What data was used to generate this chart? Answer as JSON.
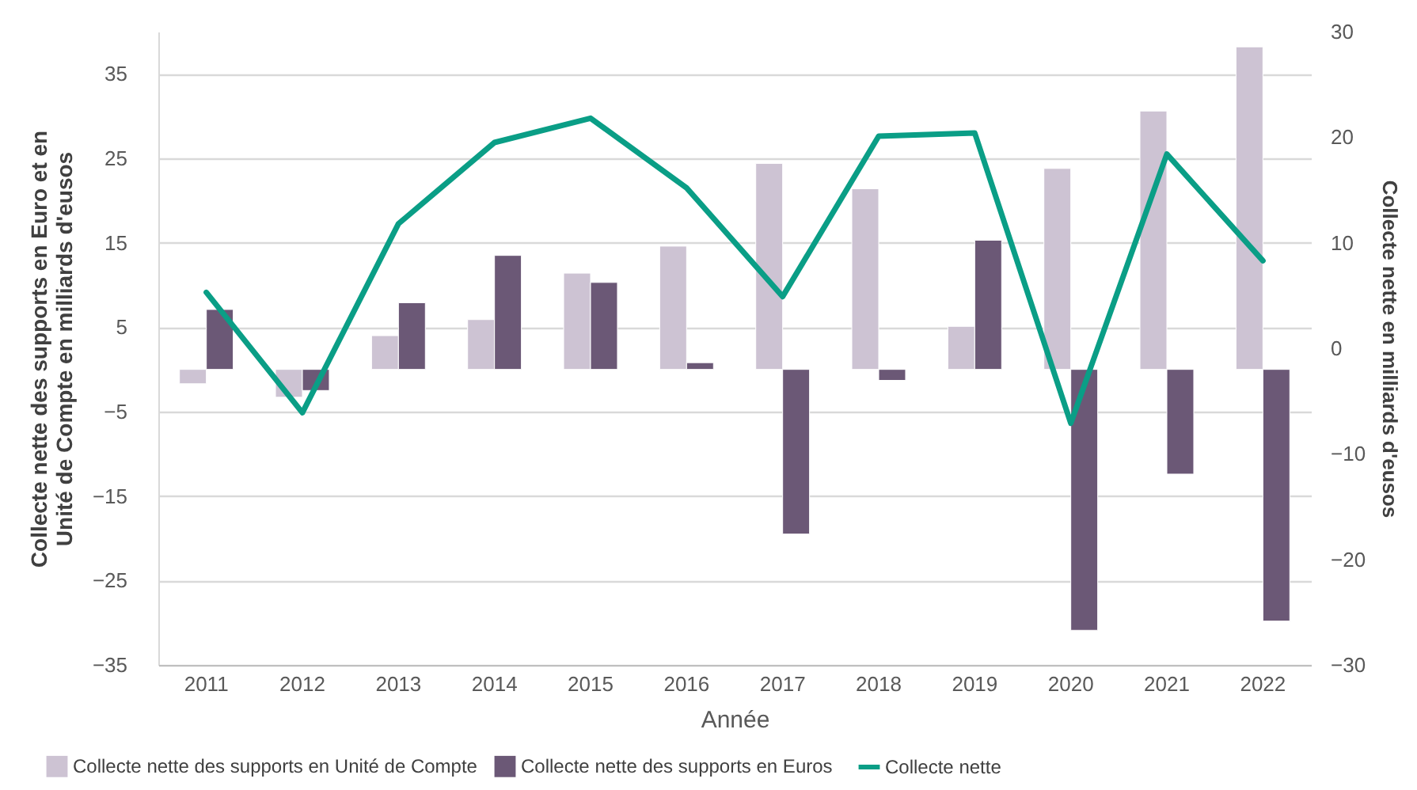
{
  "chart_data": {
    "type": "bar",
    "xlabel": "Année",
    "ylabel": "Collecte nette des supports en Euro et en Unité de Compte en milliards d'eusos",
    "y2label": "Collecte nette en milliards d'eusos",
    "categories": [
      "2011",
      "2012",
      "2013",
      "2014",
      "2015",
      "2016",
      "2017",
      "2018",
      "2019",
      "2020",
      "2021",
      "2022"
    ],
    "series": [
      {
        "name": "Collecte nette des supports en Unité de Compte",
        "color": "#cdc3d3",
        "values": [
          -1.7,
          -3.3,
          4.0,
          5.9,
          11.4,
          14.6,
          24.4,
          21.4,
          5.1,
          23.8,
          30.6,
          38.2
        ]
      },
      {
        "name": "Collecte nette des supports en Euros",
        "color": "#6b5876",
        "values": [
          7.1,
          -2.5,
          7.9,
          13.5,
          10.3,
          0.8,
          -19.5,
          -1.3,
          15.3,
          -30.9,
          -12.4,
          -29.8
        ]
      },
      {
        "name": "Collecte nette",
        "type": "line",
        "axis": "y2",
        "color": "#0a9e86",
        "values": [
          5.3,
          -6.1,
          11.8,
          19.5,
          21.8,
          15.2,
          4.9,
          20.1,
          20.4,
          -7.1,
          18.4,
          8.3
        ]
      }
    ],
    "ylim": [
      -35,
      40
    ],
    "yticks": [
      -35,
      -25,
      -15,
      -5,
      5,
      15,
      25,
      35
    ],
    "y2lim": [
      -30,
      30
    ],
    "y2ticks": [
      -30,
      -20,
      -10,
      0,
      10,
      20,
      30
    ],
    "grid": "y",
    "legend": "bottom",
    "line_style": "solid",
    "marker": "none"
  }
}
